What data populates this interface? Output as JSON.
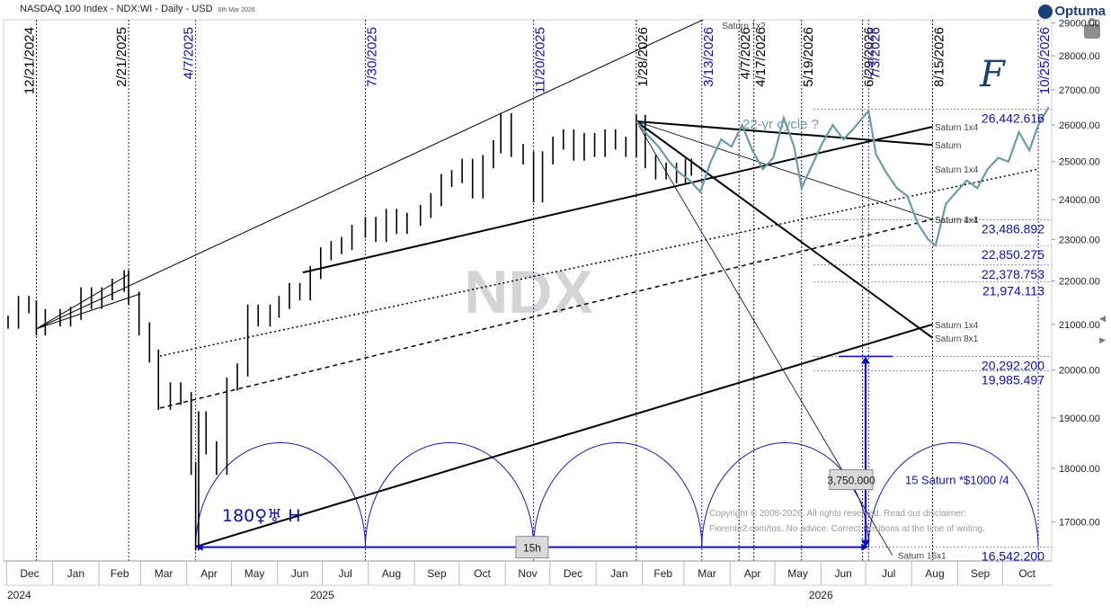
{
  "header": {
    "title": "NASDAQ 100 Index - NDX:WI - Daily - USD",
    "date_stamp": "8th Mar 2026",
    "logo": "Optuma"
  },
  "watermark": "NDX",
  "signature_glyph": "F",
  "annotations": {
    "cycle_note": "22-yr cycle ?",
    "aspect_note": "180♀♅ H",
    "measure_box": "3,750.000",
    "measure_note": "15 Saturn *$1000 /4",
    "bottom_box": "15h",
    "copyright_line1": "Copyright © 2008-2026. All rights reserved. Read our disclaimer:",
    "copyright_line2": "Fiorente2.com/tos. No advice. Correct Positions at the time of writing."
  },
  "chart_data": {
    "type": "line",
    "series": [
      {
        "name": "NDX",
        "style": "ohlc-bars",
        "color": "#000000",
        "points": [
          [
            "2024-12-02",
            21050
          ],
          [
            "2024-12-09",
            21500
          ],
          [
            "2024-12-16",
            21400
          ],
          [
            "2024-12-21",
            20900
          ],
          [
            "2024-12-27",
            21200
          ],
          [
            "2025-01-06",
            21100
          ],
          [
            "2025-01-13",
            21250
          ],
          [
            "2025-01-20",
            21700
          ],
          [
            "2025-01-27",
            21500
          ],
          [
            "2025-02-03",
            21700
          ],
          [
            "2025-02-10",
            21900
          ],
          [
            "2025-02-18",
            22100
          ],
          [
            "2025-02-21",
            21600
          ],
          [
            "2025-02-28",
            20900
          ],
          [
            "2025-03-07",
            20300
          ],
          [
            "2025-03-13",
            19300
          ],
          [
            "2025-03-21",
            19600
          ],
          [
            "2025-03-28",
            19400
          ],
          [
            "2025-04-04",
            18000
          ],
          [
            "2025-04-07",
            16600
          ],
          [
            "2025-04-09",
            19000
          ],
          [
            "2025-04-14",
            18400
          ],
          [
            "2025-04-21",
            18000
          ],
          [
            "2025-04-28",
            19700
          ],
          [
            "2025-05-05",
            20000
          ],
          [
            "2025-05-12",
            21300
          ],
          [
            "2025-05-19",
            21100
          ],
          [
            "2025-05-27",
            21300
          ],
          [
            "2025-06-02",
            21500
          ],
          [
            "2025-06-09",
            21800
          ],
          [
            "2025-06-16",
            21700
          ],
          [
            "2025-06-23",
            22200
          ],
          [
            "2025-06-30",
            22650
          ],
          [
            "2025-07-07",
            22800
          ],
          [
            "2025-07-14",
            22900
          ],
          [
            "2025-07-21",
            23200
          ],
          [
            "2025-07-30",
            23400
          ],
          [
            "2025-08-06",
            23100
          ],
          [
            "2025-08-13",
            23600
          ],
          [
            "2025-08-20",
            23300
          ],
          [
            "2025-08-27",
            23500
          ],
          [
            "2025-09-05",
            23700
          ],
          [
            "2025-09-12",
            24000
          ],
          [
            "2025-09-19",
            24500
          ],
          [
            "2025-09-26",
            24600
          ],
          [
            "2025-10-03",
            24900
          ],
          [
            "2025-10-10",
            24200
          ],
          [
            "2025-10-17",
            25000
          ],
          [
            "2025-10-24",
            25400
          ],
          [
            "2025-10-29",
            26150
          ],
          [
            "2025-11-05",
            25300
          ],
          [
            "2025-11-13",
            25100
          ],
          [
            "2025-11-20",
            24100
          ],
          [
            "2025-11-26",
            25100
          ],
          [
            "2025-12-03",
            25500
          ],
          [
            "2025-12-10",
            25700
          ],
          [
            "2025-12-17",
            25200
          ],
          [
            "2025-12-24",
            25600
          ],
          [
            "2025-12-31",
            25300
          ],
          [
            "2026-01-07",
            25700
          ],
          [
            "2026-01-14",
            25500
          ],
          [
            "2026-01-21",
            25300
          ],
          [
            "2026-01-28",
            26100
          ],
          [
            "2026-02-03",
            25000
          ],
          [
            "2026-02-10",
            24700
          ],
          [
            "2026-02-17",
            24800
          ],
          [
            "2026-02-24",
            24600
          ],
          [
            "2026-03-02",
            24900
          ],
          [
            "2026-03-06",
            24800
          ]
        ]
      },
      {
        "name": "22-yr cycle ?",
        "style": "line",
        "color": "#6f9aa5",
        "points": [
          [
            "2026-01-28",
            26100
          ],
          [
            "2026-02-05",
            25700
          ],
          [
            "2026-02-12",
            25400
          ],
          [
            "2026-02-19",
            25000
          ],
          [
            "2026-02-26",
            24700
          ],
          [
            "2026-03-05",
            24500
          ],
          [
            "2026-03-12",
            24200
          ],
          [
            "2026-03-19",
            25000
          ],
          [
            "2026-03-26",
            25600
          ],
          [
            "2026-04-02",
            25400
          ],
          [
            "2026-04-09",
            26000
          ],
          [
            "2026-04-16",
            25300
          ],
          [
            "2026-04-23",
            24800
          ],
          [
            "2026-04-30",
            25100
          ],
          [
            "2026-05-07",
            26200
          ],
          [
            "2026-05-14",
            25400
          ],
          [
            "2026-05-19",
            24300
          ],
          [
            "2026-05-26",
            24900
          ],
          [
            "2026-06-02",
            25500
          ],
          [
            "2026-06-09",
            26000
          ],
          [
            "2026-06-16",
            25600
          ],
          [
            "2026-06-23",
            25900
          ],
          [
            "2026-06-29",
            26200
          ],
          [
            "2026-07-03",
            26400
          ],
          [
            "2026-07-08",
            25200
          ],
          [
            "2026-07-15",
            24700
          ],
          [
            "2026-07-22",
            24300
          ],
          [
            "2026-07-29",
            24100
          ],
          [
            "2026-08-05",
            23400
          ],
          [
            "2026-08-12",
            23000
          ],
          [
            "2026-08-17",
            22850
          ],
          [
            "2026-08-24",
            23900
          ],
          [
            "2026-08-31",
            24200
          ],
          [
            "2026-09-07",
            24500
          ],
          [
            "2026-09-14",
            24300
          ],
          [
            "2026-09-21",
            24800
          ],
          [
            "2026-09-28",
            25100
          ],
          [
            "2026-10-05",
            25000
          ],
          [
            "2026-10-12",
            25800
          ],
          [
            "2026-10-19",
            25300
          ],
          [
            "2026-10-25",
            26000
          ],
          [
            "2026-11-01",
            26500
          ]
        ]
      }
    ],
    "x_range": [
      "2024-11-29",
      "2026-11-03"
    ],
    "y_range": [
      16300,
      29100
    ],
    "y_scale": "log",
    "y_ticks": [
      "17000.00",
      "18000.00",
      "19000.00",
      "20000.00",
      "21000.00",
      "22000.00",
      "23000.00",
      "24000.00",
      "25000.00",
      "26000.00",
      "27000.00",
      "28000.00",
      "29000.00"
    ],
    "x_month_labels": [
      [
        "2024-12-01",
        "Dec"
      ],
      [
        "2025-01-01",
        "Jan"
      ],
      [
        "2025-02-01",
        "Feb"
      ],
      [
        "2025-03-01",
        "Mar"
      ],
      [
        "2025-04-01",
        "Apr"
      ],
      [
        "2025-05-01",
        "May"
      ],
      [
        "2025-06-01",
        "Jun"
      ],
      [
        "2025-07-01",
        "Jul"
      ],
      [
        "2025-08-01",
        "Aug"
      ],
      [
        "2025-09-01",
        "Sep"
      ],
      [
        "2025-10-01",
        "Oct"
      ],
      [
        "2025-11-01",
        "Nov"
      ],
      [
        "2025-12-01",
        "Dec"
      ],
      [
        "2026-01-01",
        "Jan"
      ],
      [
        "2026-02-01",
        "Feb"
      ],
      [
        "2026-03-01",
        "Mar"
      ],
      [
        "2026-04-01",
        "Apr"
      ],
      [
        "2026-05-01",
        "May"
      ],
      [
        "2026-06-01",
        "Jun"
      ],
      [
        "2026-07-01",
        "Jul"
      ],
      [
        "2026-08-01",
        "Aug"
      ],
      [
        "2026-09-01",
        "Sep"
      ],
      [
        "2026-10-01",
        "Oct"
      ]
    ],
    "x_year_labels": [
      [
        "2024-12-01",
        "2024"
      ],
      [
        "2025-07-01",
        "2025"
      ],
      [
        "2026-06-01",
        "2026"
      ]
    ],
    "vertical_date_lines": [
      {
        "date": "2024-12-21",
        "label": "12/21/2024",
        "color": "#000000",
        "label_side": "left"
      },
      {
        "date": "2025-02-21",
        "label": "2/21/2025",
        "color": "#000000",
        "label_side": "left"
      },
      {
        "date": "2025-04-07",
        "label": "4/7/2025",
        "color": "#1010a0",
        "label_side": "left"
      },
      {
        "date": "2025-07-30",
        "label": "7/30/2025",
        "color": "#1010a0",
        "label_side": "right"
      },
      {
        "date": "2025-11-20",
        "label": "11/20/2025",
        "color": "#1010a0",
        "label_side": "right"
      },
      {
        "date": "2026-01-28",
        "label": "1/28/2026",
        "color": "#000000",
        "label_side": "right"
      },
      {
        "date": "2026-03-13",
        "label": "3/13/2026",
        "color": "#1010a0",
        "label_side": "right"
      },
      {
        "date": "2026-04-07",
        "label": "4/7/2026",
        "color": "#000000",
        "label_side": "right"
      },
      {
        "date": "2026-04-17",
        "label": "4/17/2026",
        "color": "#000000",
        "label_side": "right"
      },
      {
        "date": "2026-05-19",
        "label": "5/19/2026",
        "color": "#000000",
        "label_side": "right"
      },
      {
        "date": "2026-06-29",
        "label": "6/29/2026",
        "color": "#000000",
        "label_side": "right"
      },
      {
        "date": "2026-07-03",
        "label": "7/3/2026",
        "color": "#1010a0",
        "label_side": "right"
      },
      {
        "date": "2026-08-15",
        "label": "8/15/2026",
        "color": "#000000",
        "label_side": "right"
      },
      {
        "date": "2026-10-25",
        "label": "10/25/2026",
        "color": "#1010a0",
        "label_side": "right"
      }
    ],
    "horizontal_levels": [
      {
        "value": 26442.616,
        "label": "26,442.616"
      },
      {
        "value": 23486.892,
        "label": "23,486.892"
      },
      {
        "value": 22850.275,
        "label": "22,850.275"
      },
      {
        "value": 22378.753,
        "label": "22,378.753"
      },
      {
        "value": 21974.113,
        "label": "21,974.113"
      },
      {
        "value": 20292.2,
        "label": "20,292.200"
      },
      {
        "value": 19985.497,
        "label": "19,985.497"
      },
      {
        "value": 16542.2,
        "label": "16,542.200"
      }
    ],
    "trend_lines": [
      {
        "from": [
          "2024-12-21",
          20900
        ],
        "to": [
          "2026-03-23",
          29300
        ],
        "width": 1,
        "dash": "",
        "label": "Saturn 1x2"
      },
      {
        "from": [
          "2024-12-21",
          20900
        ],
        "to": [
          "2025-03-01",
          21700
        ],
        "width": 1,
        "dash": "",
        "label": ""
      },
      {
        "from": [
          "2024-12-21",
          20900
        ],
        "to": [
          "2025-02-21",
          22150
        ],
        "width": 1,
        "dash": "",
        "label": ""
      },
      {
        "from": [
          "2025-04-07",
          16550
        ],
        "to": [
          "2026-08-15",
          21000
        ],
        "width": 2,
        "dash": "",
        "label": "Saturn 1x4"
      },
      {
        "from": [
          "2025-03-14",
          19200
        ],
        "to": [
          "2026-08-15",
          23500
        ],
        "width": 1.5,
        "dash": "5,4",
        "label": "Saturn 1x4"
      },
      {
        "from": [
          "2025-03-14",
          20300
        ],
        "to": [
          "2026-10-25",
          24800
        ],
        "width": 1.5,
        "dash": "2,3",
        "label": "Saturn 1x4"
      },
      {
        "from": [
          "2025-06-18",
          22200
        ],
        "to": [
          "2026-08-15",
          25950
        ],
        "width": 2,
        "dash": "",
        "label": "Saturn 1x4"
      },
      {
        "from": [
          "2026-01-28",
          26100
        ],
        "to": [
          "2026-08-15",
          25450
        ],
        "width": 2,
        "dash": "",
        "label": "Saturn"
      },
      {
        "from": [
          "2026-01-28",
          26100
        ],
        "to": [
          "2026-08-15",
          20700
        ],
        "width": 2,
        "dash": "",
        "label": "Saturn 8x1"
      },
      {
        "from": [
          "2026-01-28",
          26100
        ],
        "to": [
          "2026-08-15",
          23500
        ],
        "width": 0.8,
        "dash": "",
        "label": "Saturn 4x1"
      },
      {
        "from": [
          "2026-01-28",
          26100
        ],
        "to": [
          "2026-07-19",
          16400
        ],
        "width": 0.8,
        "dash": "",
        "label": "Saturn 16x1"
      }
    ],
    "arcs": [
      {
        "from": "2025-04-07",
        "to": "2025-07-30"
      },
      {
        "from": "2025-07-30",
        "to": "2025-11-20"
      },
      {
        "from": "2025-11-20",
        "to": "2026-03-13"
      },
      {
        "from": "2026-03-13",
        "to": "2026-07-03"
      },
      {
        "from": "2026-07-03",
        "to": "2026-10-25"
      }
    ],
    "arc_peak_value": 18500,
    "measure_arrow": {
      "date": "2026-07-01",
      "from": 16542.2,
      "to": 20292.2
    },
    "base_arrow": {
      "from": "2025-04-07",
      "to": "2026-07-03",
      "value": 16542.2
    },
    "grid": false,
    "legend": "none"
  },
  "colors": {
    "blue_label": "#1010a0",
    "level_text": "#1010a0",
    "teal": "#6f9aa5",
    "axis_text": "#222222"
  }
}
